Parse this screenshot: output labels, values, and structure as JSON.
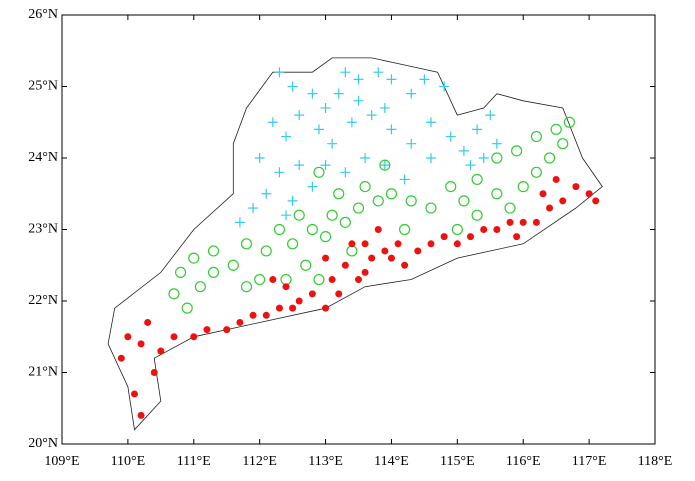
{
  "chart_data": {
    "type": "scatter",
    "xlim": [
      109,
      118
    ],
    "xticks": [
      {
        "value": 109,
        "label": "109°E"
      },
      {
        "value": 110,
        "label": "110°E"
      },
      {
        "value": 111,
        "label": "111°E"
      },
      {
        "value": 112,
        "label": "112°E"
      },
      {
        "value": 113,
        "label": "113°E"
      },
      {
        "value": 114,
        "label": "114°E"
      },
      {
        "value": 115,
        "label": "115°E"
      },
      {
        "value": 116,
        "label": "116°E"
      },
      {
        "value": 117,
        "label": "117°E"
      },
      {
        "value": 118,
        "label": "118°E"
      }
    ],
    "ylim": [
      20,
      26
    ],
    "yticks": [
      {
        "value": 20,
        "label": "20°N"
      },
      {
        "value": 21,
        "label": "21°N"
      },
      {
        "value": 22,
        "label": "22°N"
      },
      {
        "value": 23,
        "label": "23°N"
      },
      {
        "value": 24,
        "label": "24°N"
      },
      {
        "value": 25,
        "label": "25°N"
      },
      {
        "value": 26,
        "label": "26°N"
      }
    ],
    "series": [
      {
        "color": "#33ccee",
        "marker": "plus",
        "x": [
          112.3,
          112.5,
          112.8,
          113.0,
          113.2,
          113.5,
          113.8,
          113.3,
          114.0,
          114.3,
          114.5,
          114.8,
          112.2,
          112.4,
          112.6,
          112.9,
          113.1,
          113.4,
          113.7,
          114.0,
          114.3,
          114.6,
          114.9,
          115.1,
          115.3,
          115.5,
          115.4,
          115.6,
          115.2,
          112.0,
          112.3,
          112.6,
          112.8,
          113.0,
          113.3,
          113.6,
          113.9,
          114.2,
          111.9,
          112.1,
          112.4,
          111.7,
          112.5,
          113.5,
          113.9,
          114.6
        ],
        "values": [
          25.2,
          25.0,
          24.9,
          24.7,
          24.9,
          25.1,
          25.2,
          25.2,
          25.1,
          24.9,
          25.1,
          25.0,
          24.5,
          24.3,
          24.6,
          24.4,
          24.2,
          24.5,
          24.6,
          24.4,
          24.2,
          24.5,
          24.3,
          24.1,
          24.4,
          24.6,
          24.0,
          24.2,
          23.9,
          24.0,
          23.8,
          23.9,
          23.6,
          23.9,
          23.8,
          24.0,
          23.9,
          23.7,
          23.3,
          23.5,
          23.2,
          23.1,
          23.4,
          24.8,
          24.7,
          24.0
        ]
      },
      {
        "color": "#33cc33",
        "marker": "circle",
        "x": [
          110.7,
          110.9,
          111.1,
          111.3,
          110.8,
          111.0,
          111.3,
          111.6,
          111.8,
          112.0,
          111.8,
          112.1,
          112.3,
          112.5,
          112.7,
          112.9,
          112.6,
          112.8,
          113.0,
          113.1,
          113.3,
          113.5,
          113.2,
          113.6,
          113.8,
          114.0,
          114.3,
          114.6,
          114.9,
          115.1,
          115.0,
          115.3,
          115.6,
          115.8,
          116.0,
          116.2,
          116.4,
          116.6,
          116.7,
          116.5,
          116.2,
          115.9,
          115.6,
          115.3,
          112.9,
          113.9,
          114.2,
          113.4,
          112.4
        ],
        "values": [
          22.1,
          21.9,
          22.2,
          22.4,
          22.4,
          22.6,
          22.7,
          22.5,
          22.2,
          22.3,
          22.8,
          22.7,
          23.0,
          22.8,
          22.5,
          22.3,
          23.2,
          23.0,
          22.9,
          23.2,
          23.1,
          23.3,
          23.5,
          23.6,
          23.4,
          23.5,
          23.4,
          23.3,
          23.6,
          23.4,
          23.0,
          23.2,
          23.5,
          23.3,
          23.6,
          23.8,
          24.0,
          24.2,
          24.5,
          24.4,
          24.3,
          24.1,
          24.0,
          23.7,
          23.8,
          23.9,
          23.0,
          22.7,
          22.3
        ]
      },
      {
        "color": "#ee1111",
        "marker": "dot",
        "x": [
          110.2,
          110.1,
          109.9,
          110.0,
          110.2,
          110.4,
          110.3,
          110.5,
          110.7,
          111.0,
          111.2,
          111.5,
          111.7,
          111.9,
          112.1,
          112.3,
          112.2,
          112.4,
          112.6,
          112.8,
          113.0,
          113.1,
          113.2,
          113.3,
          113.5,
          113.4,
          113.6,
          113.7,
          113.8,
          113.9,
          114.0,
          114.1,
          114.2,
          114.4,
          114.6,
          114.8,
          115.0,
          115.2,
          115.4,
          115.6,
          115.8,
          116.0,
          116.2,
          116.4,
          116.6,
          116.8,
          117.0,
          117.1,
          116.5,
          116.3,
          115.9,
          113.6,
          113.0,
          112.5
        ],
        "values": [
          20.4,
          20.7,
          21.2,
          21.5,
          21.4,
          21.0,
          21.7,
          21.3,
          21.5,
          21.5,
          21.6,
          21.6,
          21.7,
          21.8,
          21.8,
          21.9,
          22.3,
          22.2,
          22.0,
          22.1,
          21.9,
          22.3,
          22.1,
          22.5,
          22.3,
          22.8,
          22.8,
          22.6,
          23.0,
          22.7,
          22.6,
          22.8,
          22.5,
          22.7,
          22.8,
          22.9,
          22.8,
          22.9,
          23.0,
          23.0,
          23.1,
          23.1,
          23.1,
          23.3,
          23.4,
          23.6,
          23.5,
          23.4,
          23.7,
          23.5,
          22.9,
          22.4,
          22.6,
          21.9
        ]
      }
    ]
  }
}
